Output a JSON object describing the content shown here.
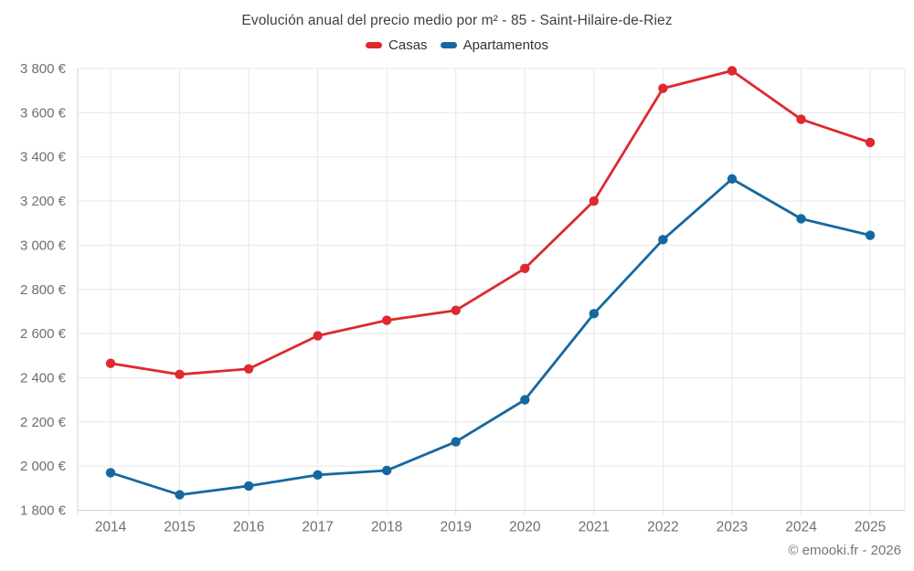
{
  "chart_data": {
    "type": "line",
    "title": "Evolución anual del precio medio por m² - 85 - Saint-Hilaire-de-Riez",
    "categories": [
      "2014",
      "2015",
      "2016",
      "2017",
      "2018",
      "2019",
      "2020",
      "2021",
      "2022",
      "2023",
      "2024",
      "2025"
    ],
    "series": [
      {
        "name": "Casas",
        "color": "#dd292f",
        "values": [
          2465,
          2415,
          2440,
          2590,
          2660,
          2705,
          2895,
          3200,
          3710,
          3790,
          3570,
          3465
        ]
      },
      {
        "name": "Apartamentos",
        "color": "#15689f",
        "values": [
          1970,
          1870,
          1910,
          1960,
          1980,
          2110,
          2300,
          2690,
          3025,
          3300,
          3120,
          3045
        ]
      }
    ],
    "ylim": [
      1800,
      3800
    ],
    "ytick_step": 200,
    "ytick_suffix": " €",
    "grid": true,
    "legend_position": "top",
    "axis_label_color": "#6f6f6f",
    "grid_color": "#e7e7e7",
    "axis_line_color": "#d3d3d3"
  },
  "footer": {
    "text": "© emooki.fr - 2026"
  }
}
